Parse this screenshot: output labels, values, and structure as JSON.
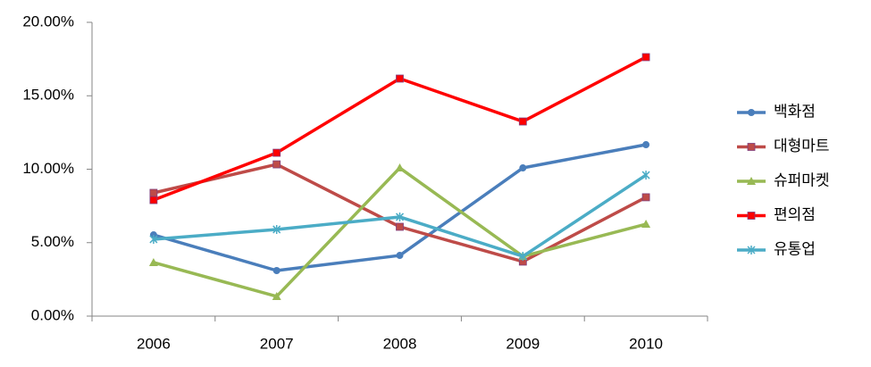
{
  "chart_data": {
    "type": "line",
    "categories": [
      "2006",
      "2007",
      "2008",
      "2009",
      "2010"
    ],
    "series": [
      {
        "name": "백화점",
        "color": "#4a7ebb",
        "marker": "circle",
        "values": [
          5.53,
          3.1,
          4.13,
          10.09,
          11.67
        ]
      },
      {
        "name": "대형마트",
        "color": "#be4b48",
        "marker": "square",
        "values": [
          8.39,
          10.33,
          6.08,
          3.71,
          8.09
        ]
      },
      {
        "name": "슈퍼마켓",
        "color": "#98b954",
        "marker": "triangle",
        "values": [
          3.65,
          1.34,
          10.09,
          4.07,
          6.26
        ]
      },
      {
        "name": "편의점",
        "color": "#ff0000",
        "marker": "square",
        "values": [
          7.9,
          11.12,
          16.17,
          13.25,
          17.63
        ]
      },
      {
        "name": "유통업",
        "color": "#4bacc6",
        "marker": "star",
        "values": [
          5.23,
          5.9,
          6.75,
          4.07,
          9.6
        ]
      }
    ],
    "ylim": [
      0,
      20
    ],
    "yticks": [
      {
        "value": 0,
        "label": "0.00%"
      },
      {
        "value": 5,
        "label": "5.00%"
      },
      {
        "value": 10,
        "label": "10.00%"
      },
      {
        "value": 15,
        "label": "15.00%"
      },
      {
        "value": 20,
        "label": "20.00%"
      }
    ],
    "grid": false,
    "legend": "right"
  }
}
